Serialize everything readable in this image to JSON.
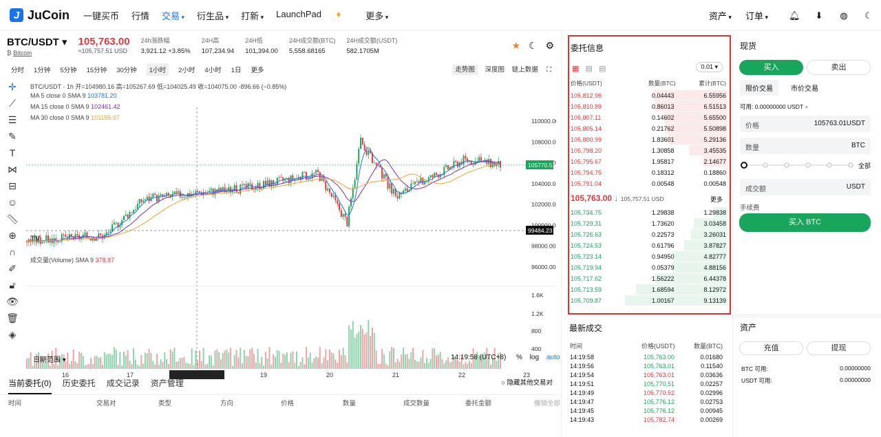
{
  "header": {
    "logo": "JuCoin",
    "nav": [
      "一键买币",
      "行情",
      "交易",
      "衍生品",
      "打新",
      "LaunchPad",
      "更多"
    ],
    "right": [
      "资产",
      "订单"
    ]
  },
  "ticker": {
    "pair": "BTC/USDT",
    "sub": "Bitcoin",
    "price": "105,763.00",
    "price_sub": "≈105,757.51 USD",
    "stats": [
      {
        "label": "24h涨跌幅",
        "value": "3,921.12 +3.85%"
      },
      {
        "label": "24H高",
        "value": "107,234.94"
      },
      {
        "label": "24H低",
        "value": "101,394.00"
      },
      {
        "label": "24H成交额(BTC)",
        "value": "5,558.68165"
      },
      {
        "label": "24H成交额(USDT)",
        "value": "582.1705M"
      }
    ]
  },
  "intervals": [
    "分时",
    "1分钟",
    "5分钟",
    "15分钟",
    "30分钟",
    "1小时",
    "2小时",
    "4小时",
    "1日",
    "更多"
  ],
  "chart_views": [
    "走势图",
    "深度图",
    "链上数据"
  ],
  "chart": {
    "legend": "BTC/USDT · 1h  开=104980.16 高=105267.69 低=104025.49 收=104075.00 -896.66 (−0.85%)",
    "ma5": "MA 5 close 0 SMA 9",
    "ma5v": "103781.20",
    "ma15": "MA 15 close 0 SMA 9",
    "ma15v": "102461.42",
    "ma30": "MA 30 close 0 SMA 9",
    "ma30v": "101155.97",
    "price_axis": [
      "110000.00",
      "108000.00",
      "106000.00",
      "104000.00",
      "102000.00",
      "100000.00",
      "98000.00",
      "96000.00"
    ],
    "last": "105770.51",
    "cross": "99484.23",
    "vol_label": "成交量(Volume) SMA 9",
    "vol_val": "378.87",
    "vol_axis": [
      "1.6K",
      "1.2K",
      "800",
      "400"
    ],
    "dates": [
      "16",
      "17",
      "2025-01-18  01:00",
      "19",
      "20",
      "21",
      "22",
      "23"
    ],
    "range": "日期范围",
    "time": "14:19:58 (UTC+8)",
    "opts": [
      "%",
      "log",
      "auto"
    ]
  },
  "bottom_tabs": [
    "当前委托(0)",
    "历史委托",
    "成交记录",
    "资产管理"
  ],
  "hide_other": "隐藏其他交易对",
  "bottom_cols": [
    "时间",
    "交易对",
    "类型",
    "方向",
    "价格",
    "数量",
    "成交数量",
    "委托金额",
    "撤销全部"
  ],
  "orderbook": {
    "title": "委托信息",
    "precision": "0.01",
    "headers": [
      "价格(USDT)",
      "数量(BTC)",
      "累计(BTC)"
    ],
    "asks": [
      [
        "105,812.96",
        "0.04443",
        "6.55956"
      ],
      [
        "105,810.89",
        "0.86013",
        "6.51513"
      ],
      [
        "105,807.11",
        "0.14602",
        "5.65500"
      ],
      [
        "105,805.14",
        "0.21762",
        "5.50898"
      ],
      [
        "105,800.99",
        "1.83601",
        "5.29136"
      ],
      [
        "105,798.20",
        "1.30858",
        "3.45535"
      ],
      [
        "105,795.67",
        "1.95817",
        "2.14677"
      ],
      [
        "105,794.75",
        "0.18312",
        "0.18860"
      ],
      [
        "105,791.04",
        "0.00548",
        "0.00548"
      ]
    ],
    "mid": "105,763.00",
    "mid_sub": "105,757.51 USD",
    "more": "更多",
    "bids": [
      [
        "105,734.75",
        "1.29838",
        "1.29838"
      ],
      [
        "105,729.31",
        "1.73620",
        "3.03458"
      ],
      [
        "105,726.63",
        "0.22573",
        "3.26031"
      ],
      [
        "105,724.53",
        "0.61796",
        "3.87827"
      ],
      [
        "105,723.14",
        "0.94950",
        "4.82777"
      ],
      [
        "105,719.94",
        "0.05379",
        "4.88156"
      ],
      [
        "105,717.62",
        "1.56222",
        "6.44378"
      ],
      [
        "105,713.59",
        "1.68594",
        "8.12972"
      ],
      [
        "105,709.87",
        "1.00167",
        "9.13139"
      ]
    ]
  },
  "trades": {
    "title": "最新成交",
    "headers": [
      "时间",
      "价格(USDT)",
      "数量(BTC)"
    ],
    "rows": [
      [
        "14:19:58",
        "105,763.00",
        "0.01680",
        "g"
      ],
      [
        "14:19:56",
        "105,763.01",
        "0.11540",
        "g"
      ],
      [
        "14:19:54",
        "105,763.01",
        "0.03636",
        "r"
      ],
      [
        "14:19:51",
        "105,770.51",
        "0.02257",
        "g"
      ],
      [
        "14:19:49",
        "105,770.52",
        "0.02996",
        "r"
      ],
      [
        "14:19:47",
        "105,776.12",
        "0.02753",
        "g"
      ],
      [
        "14:19:45",
        "105,776.12",
        "0.00945",
        "g"
      ],
      [
        "14:19:43",
        "105,782.74",
        "0.00269",
        "r"
      ]
    ]
  },
  "spot": {
    "title": "现货",
    "buy": "买入",
    "sell": "卖出",
    "limit": "限价交易",
    "market": "市价交易",
    "avail": "可用: 0.00000000 USDT",
    "price_label": "价格",
    "price_val": "105763.01",
    "price_unit": "USDT",
    "qty_label": "数量",
    "qty_unit": "BTC",
    "all": "全部",
    "total_label": "成交额",
    "total_unit": "USDT",
    "fee": "手续费",
    "buy_btn": "买入 BTC"
  },
  "assets": {
    "title": "资产",
    "deposit": "充值",
    "withdraw": "提现",
    "btc": "BTC 可用:",
    "btc_v": "0.00000000",
    "usdt": "USDT 可用:",
    "usdt_v": "0.00000000"
  }
}
